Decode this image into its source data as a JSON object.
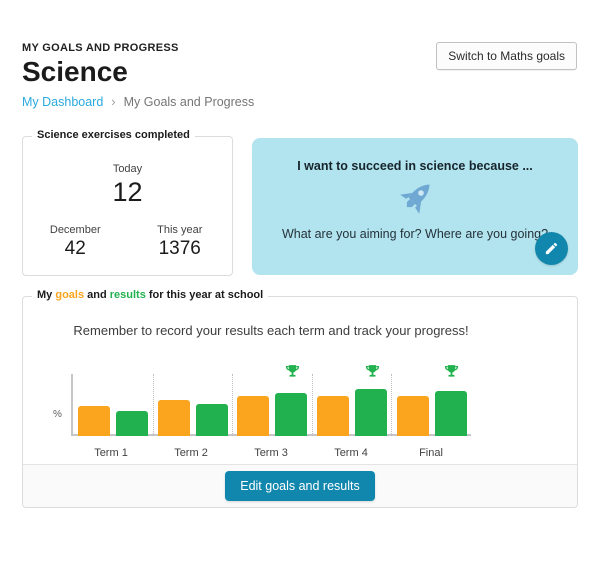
{
  "header": {
    "eyebrow": "MY GOALS AND PROGRESS",
    "title": "Science",
    "switch_button_label": "Switch to Maths goals"
  },
  "breadcrumb": {
    "link": "My Dashboard",
    "separator": "›",
    "current": "My Goals and Progress"
  },
  "exercises_card": {
    "legend": "Science exercises completed",
    "today_label": "Today",
    "today_value": "12",
    "month_label": "December",
    "month_value": "42",
    "year_label": "This year",
    "year_value": "1376"
  },
  "motivation_card": {
    "heading": "I want to succeed in science because ...",
    "prompt": "What are you aiming for? Where are you going?",
    "background_color": "#b2e4ef",
    "rocket_color": "#6fa8d2",
    "rocket_window_color": "#cfe9f4"
  },
  "goals_card": {
    "legend": {
      "prefix": "My ",
      "goals_word": "goals",
      "middle": " and ",
      "results_word": "results",
      "suffix": " for this year at school"
    },
    "reminder": "Remember to record your results each term and track your progress!",
    "edit_button_label": "Edit goals and results"
  },
  "chart_data": {
    "type": "bar",
    "categories": [
      "Term 1",
      "Term 2",
      "Term 3",
      "Term 4",
      "Final"
    ],
    "series": [
      {
        "name": "goals",
        "color": "#fba41e",
        "values": [
          48,
          58,
          65,
          65,
          65
        ]
      },
      {
        "name": "results",
        "color": "#21b14e",
        "values": [
          40,
          52,
          70,
          76,
          73
        ]
      }
    ],
    "ylabel": "%",
    "ylim": [
      0,
      100
    ],
    "grid": false,
    "legend_position": "none",
    "trophies": [
      false,
      false,
      true,
      true,
      true
    ]
  },
  "colors": {
    "link_blue": "#2aa9e0",
    "accent_teal": "#1287ad",
    "goal_orange": "#fba41e",
    "result_green": "#21b14e"
  }
}
